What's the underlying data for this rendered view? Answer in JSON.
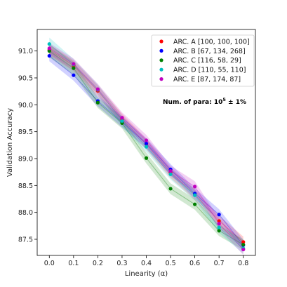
{
  "chart_data": {
    "type": "line",
    "xlabel": "Linearity (α)",
    "ylabel": "Validation Accuracy",
    "xlim": [
      -0.05,
      0.85
    ],
    "ylim": [
      87.2,
      91.4
    ],
    "xticks": [
      0.0,
      0.1,
      0.2,
      0.3,
      0.4,
      0.5,
      0.6,
      0.7,
      0.8
    ],
    "xtick_labels": [
      "0.0",
      "0.1",
      "0.2",
      "0.3",
      "0.4",
      "0.5",
      "0.6",
      "0.7",
      "0.8"
    ],
    "yticks": [
      87.5,
      88.0,
      88.5,
      89.0,
      89.5,
      90.0,
      90.5,
      91.0
    ],
    "ytick_labels": [
      "87.5",
      "88.0",
      "88.5",
      "89.0",
      "89.5",
      "90.0",
      "90.5",
      "91.0"
    ],
    "grid": false,
    "legend_position": "top-right",
    "annotation": {
      "prefix": "Num. of para: 10",
      "superscript": "5",
      "suffix": " ± 1%"
    },
    "x": [
      0.0,
      0.1,
      0.2,
      0.3,
      0.4,
      0.5,
      0.6,
      0.7,
      0.8
    ],
    "series": [
      {
        "name": "ARC. A [100, 100, 100]",
        "color": "#ff0000",
        "values": [
          91.02,
          90.73,
          90.26,
          89.73,
          89.27,
          88.74,
          88.33,
          87.84,
          87.45
        ],
        "lower": [
          90.92,
          90.63,
          90.16,
          89.63,
          89.17,
          88.64,
          88.23,
          87.74,
          87.35
        ],
        "upper": [
          91.12,
          90.83,
          90.36,
          89.83,
          89.37,
          88.84,
          88.43,
          87.94,
          87.55
        ]
      },
      {
        "name": "ARC. B [67, 134, 268]",
        "color": "#0000ff",
        "values": [
          90.91,
          90.55,
          90.07,
          89.68,
          89.28,
          88.8,
          88.35,
          87.96,
          87.39
        ],
        "lower": [
          90.81,
          90.45,
          89.97,
          89.58,
          89.18,
          88.7,
          88.25,
          87.86,
          87.29
        ],
        "upper": [
          91.01,
          90.65,
          90.17,
          89.78,
          89.38,
          88.9,
          88.45,
          88.06,
          87.49
        ]
      },
      {
        "name": "ARC. C [116, 58, 29]",
        "color": "#008000",
        "values": [
          91.0,
          90.68,
          90.04,
          89.66,
          89.01,
          88.44,
          88.15,
          87.66,
          87.4
        ],
        "lower": [
          90.88,
          90.56,
          89.94,
          89.56,
          88.91,
          88.34,
          88.05,
          87.56,
          87.3
        ],
        "upper": [
          91.12,
          90.8,
          90.14,
          89.76,
          89.11,
          88.54,
          88.25,
          87.76,
          87.5
        ]
      },
      {
        "name": "ARC. D [110, 55, 110]",
        "color": "#00bfbf",
        "values": [
          91.13,
          90.75,
          90.28,
          89.7,
          89.22,
          88.71,
          88.32,
          87.72,
          87.33
        ],
        "lower": [
          91.01,
          90.65,
          90.18,
          89.6,
          89.12,
          88.61,
          88.22,
          87.62,
          87.23
        ],
        "upper": [
          91.25,
          90.85,
          90.38,
          89.8,
          89.32,
          88.81,
          88.42,
          87.82,
          87.43
        ]
      },
      {
        "name": "ARC. E [87, 174, 87]",
        "color": "#bf00bf",
        "values": [
          91.05,
          90.76,
          90.29,
          89.76,
          89.34,
          88.77,
          88.48,
          87.79,
          87.31
        ],
        "lower": [
          90.95,
          90.66,
          90.19,
          89.66,
          89.24,
          88.67,
          88.38,
          87.69,
          87.21
        ],
        "upper": [
          91.15,
          90.86,
          90.39,
          89.86,
          89.44,
          88.87,
          88.58,
          87.89,
          87.41
        ]
      }
    ]
  }
}
